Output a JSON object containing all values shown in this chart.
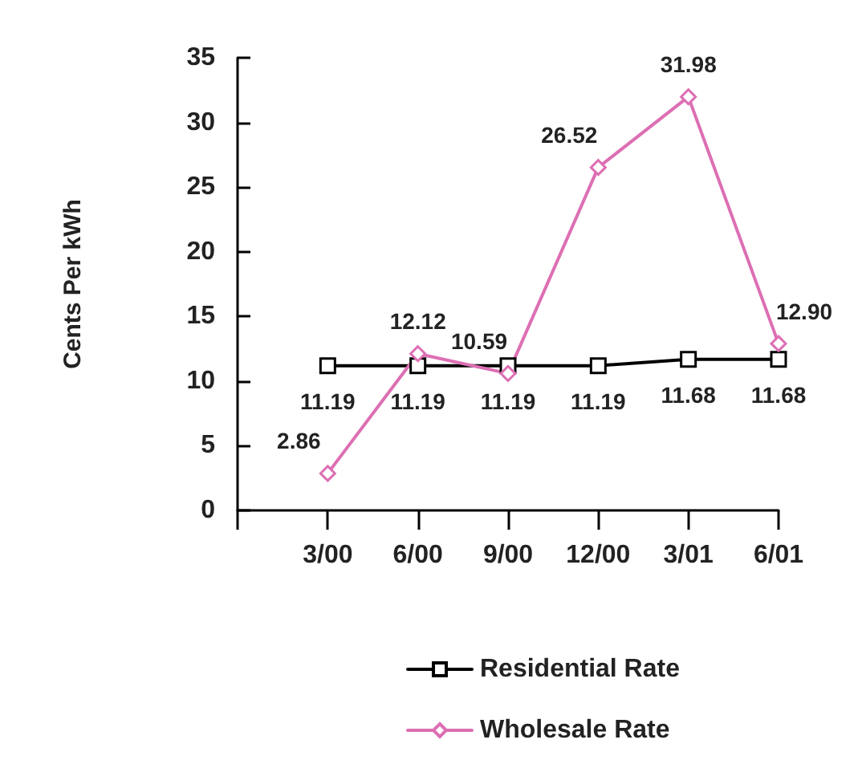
{
  "chart_data": {
    "type": "line",
    "ylabel": "Cents Per kWh",
    "categories": [
      null,
      "3/00",
      "6/00",
      "9/00",
      "12/00",
      "3/01",
      "6/01"
    ],
    "series": [
      {
        "name": "Residential Rate",
        "color": "#000000",
        "marker": "square",
        "values": [
          null,
          11.19,
          11.19,
          11.19,
          11.19,
          11.68,
          11.68
        ],
        "value_labels": [
          null,
          "11.19",
          "11.19",
          "11.19",
          "11.19",
          "11.68",
          "11.68"
        ]
      },
      {
        "name": "Wholesale Rate",
        "color": "#dd6fb4",
        "marker": "diamond",
        "values": [
          null,
          2.86,
          12.12,
          10.59,
          26.52,
          31.98,
          12.9
        ],
        "value_labels": [
          null,
          "2.86",
          "12.12",
          "10.59",
          "26.52",
          "31.98",
          "12.90"
        ]
      }
    ],
    "ylim": [
      0,
      35
    ],
    "yticks": [
      0,
      5,
      10,
      15,
      20,
      25,
      30,
      35
    ],
    "grid": false,
    "legend": "bottom",
    "line_style": "solid"
  }
}
